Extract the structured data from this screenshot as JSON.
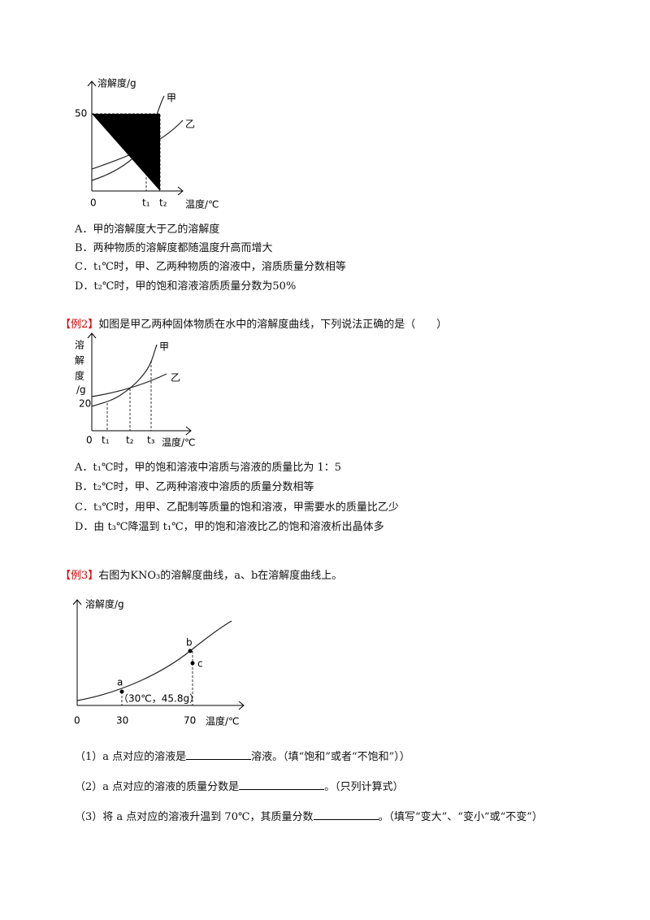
{
  "ex1": {
    "graph": {
      "y_axis": "溶解度/g",
      "y_tick": "50",
      "origin": "0",
      "x_ticks": [
        "t₁",
        "t₂"
      ],
      "x_axis": "温度/℃",
      "curves": [
        "甲",
        "乙"
      ]
    },
    "options": [
      "A．甲的溶解度大于乙的溶解度",
      "B．两种物质的溶解度都随温度升高而增大",
      "C．t₁℃时，甲、乙两种物质的溶液中，溶质质量分数相等",
      "D．t₂℃时，甲的饱和溶液溶质质量分数为50%"
    ]
  },
  "ex2": {
    "tag": "【例2】",
    "stem": "如图是甲乙两种固体物质在水中的溶解度曲线，下列说法正确的是（　　）",
    "graph": {
      "y_axis": [
        "溶",
        "解",
        "度",
        "/g"
      ],
      "y_tick": "20",
      "origin": "0",
      "x_ticks": [
        "t₁",
        "t₂",
        "t₃"
      ],
      "x_axis": "温度/℃",
      "curves": [
        "甲",
        "乙"
      ]
    },
    "options": [
      "A．t₁℃时，甲的饱和溶液中溶质与溶液的质量比为 1：5",
      "B．t₂℃时，甲、乙两种溶液中溶质的质量分数相等",
      "C．t₃℃时，用甲、乙配制等质量的饱和溶液，甲需要水的质量比乙少",
      "D．由 t₃℃降温到 t₁℃，甲的饱和溶液比乙的饱和溶液析出晶体多"
    ]
  },
  "ex3": {
    "tag": "【例3】",
    "stem": "右图为KNO₃的溶解度曲线，a、b在溶解度曲线上。",
    "graph": {
      "y_axis": "溶解度/g",
      "origin": "0",
      "x_ticks": [
        "30",
        "70"
      ],
      "x_axis": "温度/℃",
      "points": [
        "a",
        "b",
        "c"
      ],
      "annotation": "（30℃，45.8g）"
    },
    "questions": [
      [
        "（1）a 点对应的溶液是",
        "溶液。（填“饱和”或者“不饱和”））"
      ],
      [
        "（2）a 点对应的溶液的质量分数是",
        "。（只列计算式）"
      ],
      [
        "（3）将 a 点对应的溶液升温到 70℃，其质量分数",
        "。（填写“变大”、“变小”或“不变”）"
      ]
    ]
  }
}
